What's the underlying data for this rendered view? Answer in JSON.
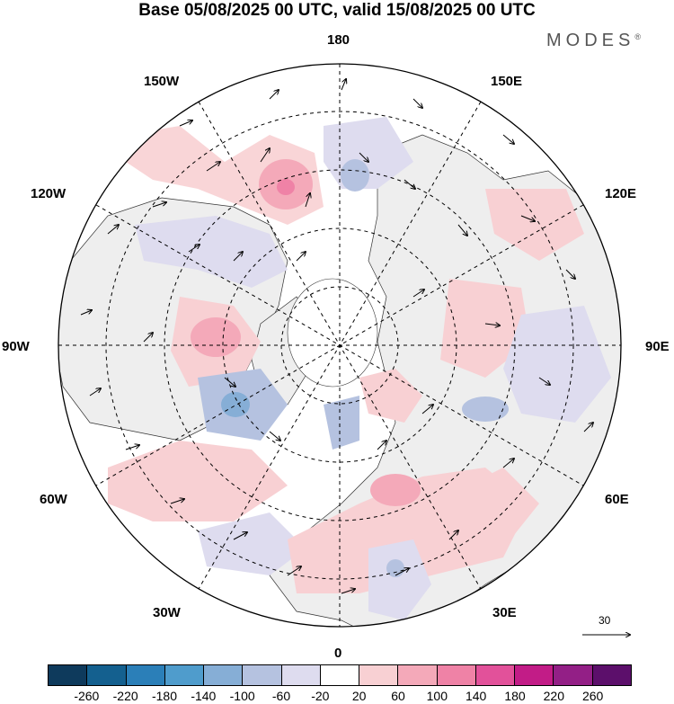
{
  "title": "Base 05/08/2025 00 UTC, valid 15/08/2025 00 UTC",
  "brand": {
    "name": "MODES",
    "mark": "®"
  },
  "longitude_labels": {
    "lon_180": "180",
    "lon_150e": "150E",
    "lon_120e": "120E",
    "lon_90e": "90E",
    "lon_60e": "60E",
    "lon_30e": "30E",
    "lon_0": "0",
    "lon_30w": "30W",
    "lon_60w": "60W",
    "lon_90w": "90W",
    "lon_120w": "120W",
    "lon_150w": "150W"
  },
  "reference_vector": {
    "label": "30"
  },
  "colorbar": {
    "colors": [
      "#0e3a5c",
      "#14608f",
      "#2b7fb8",
      "#4f9ccc",
      "#86aed6",
      "#b5c2e0",
      "#dedcef",
      "#ffffff",
      "#f8d0d3",
      "#f4a9b9",
      "#ef82a6",
      "#e2519a",
      "#c21c87",
      "#931f86",
      "#5c0f6b"
    ],
    "labels": [
      "-260",
      "-220",
      "-180",
      "-140",
      "-100",
      "-60",
      "-20",
      "20",
      "60",
      "100",
      "140",
      "180",
      "220",
      "260"
    ]
  },
  "anomaly_colors": {
    "neg1": "#dedcef",
    "neg2": "#b5c2e0",
    "neg3": "#86aed6",
    "pos1": "#f8d0d3",
    "pos2": "#f4a9b9",
    "pos3": "#ef82a6"
  },
  "land_color": "#eeeeee"
}
